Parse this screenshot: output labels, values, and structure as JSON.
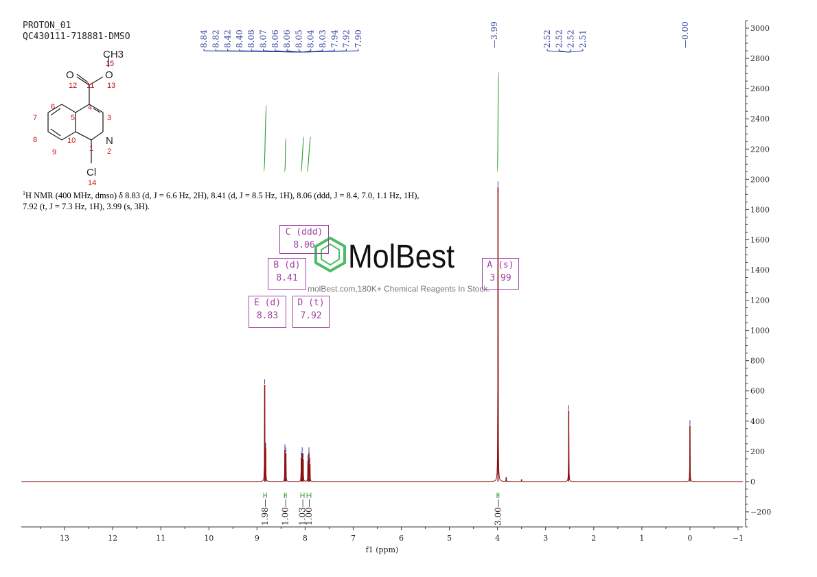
{
  "header": {
    "line1": "PROTON_01",
    "line2": "QC430111-718881-DMSO"
  },
  "description": {
    "nucleus_sup": "1",
    "text": "H NMR (400 MHz, dmso) δ 8.83 (d, J = 6.6 Hz, 2H), 8.41 (d, J = 8.5 Hz, 1H), 8.06 (ddd, J = 8.4, 7.0, 1.1 Hz, 1H), 7.92 (t, J = 7.3 Hz, 1H), 3.99 (s, 3H)."
  },
  "molecule": {
    "atoms": [
      "CH3",
      "O",
      "O",
      "N",
      "Cl"
    ],
    "numbers": [
      "15",
      "12",
      "11",
      "13",
      "6",
      "4",
      "3",
      "7",
      "5",
      "8",
      "10",
      "1",
      "N",
      "2",
      "9",
      "14"
    ]
  },
  "multiplets": [
    {
      "label": "C (ddd)",
      "value": "8.06"
    },
    {
      "label": "B (d)",
      "value": "8.41"
    },
    {
      "label": "A (s)",
      "value": "3.99"
    },
    {
      "label": "E (d)",
      "value": "8.83"
    },
    {
      "label": "D (t)",
      "value": "7.92"
    }
  ],
  "watermark": {
    "brand": "MolBest",
    "tagline": "molBest.com,180K+ Chemical Reagents In Stock."
  },
  "colors": {
    "spectrum": "#8b1010",
    "peak_label": "#3040a0",
    "integral": "#2a9a2a",
    "multiplet_box": "#a040a0",
    "watermark": "#2bb24c"
  },
  "chart_data": {
    "type": "line",
    "xlabel": "f1 (ppm)",
    "x_reversed": true,
    "xlim": [
      13.9,
      -1.1
    ],
    "ylim": [
      -300,
      3050
    ],
    "x_ticks": [
      13,
      12,
      11,
      10,
      9,
      8,
      7,
      6,
      5,
      4,
      3,
      2,
      1,
      0,
      -1
    ],
    "y_ticks": [
      3000,
      2800,
      2600,
      2400,
      2200,
      2000,
      1800,
      1600,
      1400,
      1200,
      1000,
      800,
      600,
      400,
      200,
      0,
      -200
    ],
    "peak_labels": [
      "8.84",
      "8.82",
      "8.42",
      "8.40",
      "8.08",
      "8.07",
      "8.06",
      "8.06",
      "8.05",
      "8.04",
      "8.03",
      "7.94",
      "7.92",
      "7.90",
      "3.99",
      "2.52",
      "2.52",
      "2.52",
      "2.51",
      "0.00"
    ],
    "peaks": [
      {
        "ppm": 8.84,
        "height": 640
      },
      {
        "ppm": 8.82,
        "height": 220
      },
      {
        "ppm": 8.42,
        "height": 210
      },
      {
        "ppm": 8.4,
        "height": 190
      },
      {
        "ppm": 8.08,
        "height": 160
      },
      {
        "ppm": 8.06,
        "height": 190
      },
      {
        "ppm": 8.04,
        "height": 150
      },
      {
        "ppm": 7.94,
        "height": 140
      },
      {
        "ppm": 7.92,
        "height": 190
      },
      {
        "ppm": 7.9,
        "height": 120
      },
      {
        "ppm": 3.99,
        "height": 1950
      },
      {
        "ppm": 3.82,
        "height": 30
      },
      {
        "ppm": 3.5,
        "height": 15
      },
      {
        "ppm": 2.52,
        "height": 470
      },
      {
        "ppm": 0.0,
        "height": 370
      }
    ],
    "integrals": [
      {
        "value": "1.98",
        "from": 8.86,
        "to": 8.8,
        "curve_top": 2490,
        "curve_bottom": 2050
      },
      {
        "value": "1.00",
        "from": 8.43,
        "to": 8.39,
        "curve_top": 2270,
        "curve_bottom": 2050
      },
      {
        "value": "1.03",
        "from": 8.09,
        "to": 8.02,
        "curve_top": 2280,
        "curve_bottom": 2050
      },
      {
        "value": "1.00",
        "from": 7.96,
        "to": 7.88,
        "curve_top": 2280,
        "curve_bottom": 2050
      },
      {
        "value": "3.00",
        "from": 4.01,
        "to": 3.97,
        "curve_top": 2710,
        "curve_bottom": 2050
      }
    ]
  }
}
